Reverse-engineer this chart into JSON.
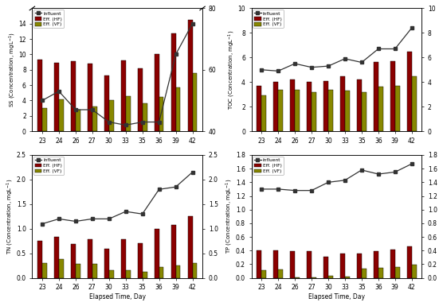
{
  "days": [
    23,
    24,
    26,
    27,
    30,
    33,
    35,
    36,
    39,
    42
  ],
  "SS": {
    "influent": [
      50,
      53,
      47,
      47,
      43,
      42,
      43,
      43,
      65,
      75
    ],
    "hf": [
      9.3,
      8.9,
      9.1,
      8.8,
      7.3,
      9.2,
      8.2,
      10.0,
      12.7,
      14.5
    ],
    "vf": [
      3.0,
      4.1,
      2.8,
      3.2,
      4.0,
      4.6,
      3.6,
      4.5,
      5.7,
      7.6
    ],
    "ylabel": "SS (Concentration, mgL$^{-1}$)",
    "ylim_left": [
      0,
      16
    ],
    "ylim_right": [
      40,
      80
    ],
    "yticks_left": [
      0,
      2,
      4,
      6,
      8,
      10,
      12,
      14
    ],
    "yticks_right": [
      40,
      60,
      80
    ]
  },
  "TOC": {
    "influent": [
      5.0,
      4.9,
      5.5,
      5.2,
      5.3,
      5.9,
      5.6,
      6.7,
      6.7,
      8.4
    ],
    "hf": [
      3.7,
      4.0,
      4.2,
      4.0,
      4.1,
      4.5,
      4.2,
      5.6,
      5.7,
      6.5
    ],
    "vf": [
      2.9,
      3.4,
      3.4,
      3.2,
      3.4,
      3.3,
      3.2,
      3.6,
      3.7,
      4.5
    ],
    "ylabel": "TOC (Concentration, mgL$^{-1}$)",
    "ylim_left": [
      0,
      10
    ],
    "ylim_right": [
      0,
      10
    ],
    "yticks_left": [
      0,
      2,
      4,
      6,
      8,
      10
    ],
    "yticks_right": [
      0,
      2,
      4,
      6,
      8,
      10
    ]
  },
  "TN": {
    "influent": [
      1.1,
      1.2,
      1.15,
      1.2,
      1.2,
      1.35,
      1.3,
      1.8,
      1.85,
      2.15
    ],
    "hf": [
      0.75,
      0.83,
      0.69,
      0.78,
      0.6,
      0.78,
      0.7,
      1.0,
      1.07,
      1.26
    ],
    "vf": [
      0.3,
      0.39,
      0.29,
      0.28,
      0.15,
      0.15,
      0.13,
      0.22,
      0.25,
      0.3
    ],
    "ylabel": "TN (Concentration, mgL$^{-1}$)",
    "ylim_left": [
      0.0,
      2.5
    ],
    "ylim_right": [
      0.0,
      2.5
    ],
    "yticks_left": [
      0.0,
      0.5,
      1.0,
      1.5,
      2.0,
      2.5
    ],
    "yticks_right": [
      0.0,
      0.5,
      1.0,
      1.5,
      2.0,
      2.5
    ]
  },
  "TP": {
    "influent": [
      1.3,
      1.3,
      1.28,
      1.28,
      1.4,
      1.43,
      1.58,
      1.52,
      1.55,
      1.67
    ],
    "hf": [
      0.4,
      0.4,
      0.39,
      0.39,
      0.31,
      0.36,
      0.36,
      0.39,
      0.41,
      0.46
    ],
    "vf": [
      0.11,
      0.12,
      0.01,
      0.01,
      0.03,
      0.02,
      0.13,
      0.15,
      0.16,
      0.19
    ],
    "ylabel": "TP (Concentration, mgL$^{-1}$)",
    "ylim_left": [
      0.0,
      1.8
    ],
    "ylim_right": [
      0.0,
      1.8
    ],
    "yticks_left": [
      0.0,
      0.2,
      0.4,
      0.6,
      0.8,
      1.0,
      1.2,
      1.4,
      1.6,
      1.8
    ],
    "yticks_right": [
      0.0,
      0.2,
      0.4,
      0.6,
      0.8,
      1.0,
      1.2,
      1.4,
      1.6,
      1.8
    ]
  },
  "bar_width": 0.28,
  "color_hf": "#8B0000",
  "color_vf": "#888800",
  "color_influent": "#333333",
  "xlabel": "Elapsed Time, Day"
}
